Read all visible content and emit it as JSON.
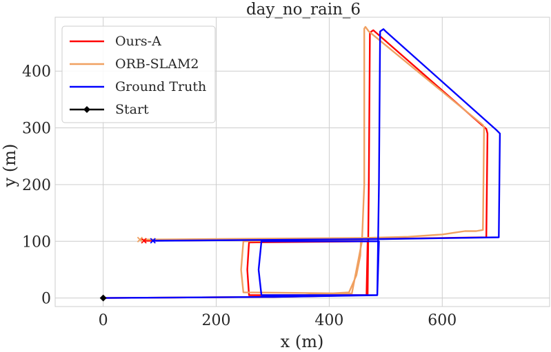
{
  "chart_data": {
    "type": "line",
    "title": "day_no_rain_6",
    "xlabel": "x (m)",
    "ylabel": "y (m)",
    "xlim": [
      -85,
      790
    ],
    "ylim": [
      -15,
      495
    ],
    "xticks": [
      0,
      200,
      400,
      600
    ],
    "yticks": [
      0,
      100,
      200,
      300,
      400
    ],
    "xtick_labels": [
      "0",
      "200",
      "400",
      "600"
    ],
    "ytick_labels": [
      "0",
      "100",
      "200",
      "300",
      "400"
    ],
    "grid": true,
    "legend_position": "top-left",
    "legend": [
      "Ours-A",
      "ORB-SLAM2",
      "Ground Truth",
      "Start"
    ],
    "start_point": {
      "name": "Start",
      "x": 0,
      "y": 0,
      "color": "#000000"
    },
    "series": [
      {
        "name": "Ours-A",
        "color": "#ff0000",
        "end_marker": "x",
        "x": [
          0,
          300,
          466,
          468,
          258,
          255,
          258,
          468,
          470,
          472,
          478,
          678,
          680,
          678,
          470,
          72
        ],
        "y": [
          0,
          2,
          5,
          100,
          98,
          50,
          5,
          5,
          200,
          468,
          472,
          298,
          290,
          107,
          104,
          101
        ]
      },
      {
        "name": "ORB-SLAM2",
        "color": "#f0a060",
        "end_marker": "x",
        "x": [
          0,
          300,
          435,
          448,
          455,
          456,
          455,
          248,
          244,
          248,
          440,
          458,
          462,
          462,
          464,
          470,
          672,
          674,
          672,
          660,
          640,
          620,
          600,
          540,
          460,
          200,
          65
        ],
        "y": [
          0,
          2,
          10,
          40,
          75,
          100,
          102,
          100,
          50,
          10,
          8,
          100,
          200,
          475,
          478,
          470,
          305,
          300,
          120,
          118,
          118,
          115,
          112,
          108,
          106,
          104,
          103
        ]
      },
      {
        "name": "Ground Truth",
        "color": "#0000ff",
        "end_marker": "x",
        "x": [
          0,
          300,
          485,
          488,
          280,
          275,
          280,
          485,
          488,
          490,
          496,
          500,
          696,
          702,
          700,
          494,
          88
        ],
        "y": [
          0,
          2,
          5,
          100,
          100,
          50,
          5,
          5,
          200,
          470,
          474,
          470,
          296,
          290,
          107,
          104,
          101
        ]
      }
    ]
  }
}
